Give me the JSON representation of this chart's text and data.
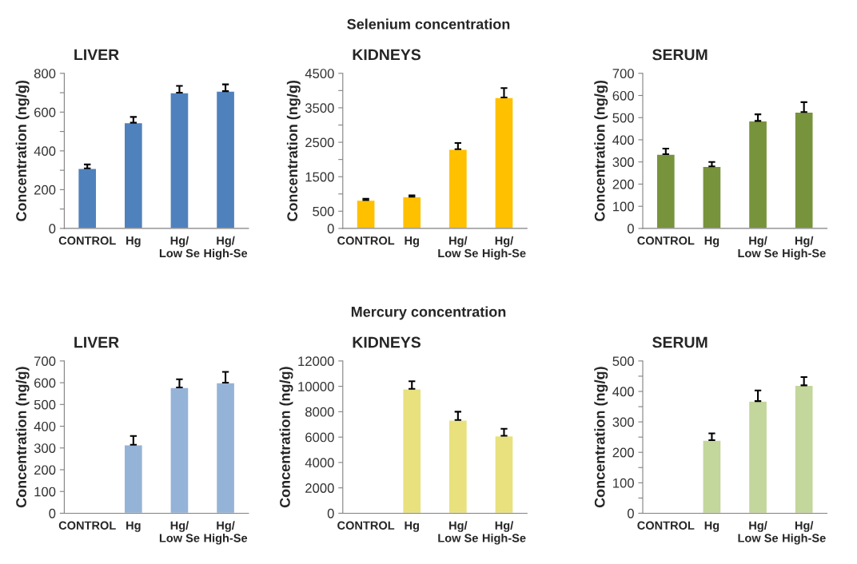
{
  "chart_data": [
    {
      "type": "bar",
      "title": "LIVER",
      "ylabel": "Concentration (ng/g)",
      "annotations": [
        "Selenium concentration"
      ],
      "categories": [
        "CONTROL",
        "Hg",
        "Hg/\nLow Se",
        "Hg/\nHigh-Se"
      ],
      "values": [
        310,
        545,
        700,
        708
      ],
      "errors": [
        [
          310,
          330
        ],
        [
          545,
          575
        ],
        [
          700,
          735
        ],
        [
          708,
          743
        ]
      ],
      "color": "#4f81bd",
      "ylim": [
        0,
        800
      ],
      "yticks": [
        0,
        {
          "value": 100,
          "label": null
        },
        200,
        {
          "value": 300,
          "label": null
        },
        400,
        {
          "value": 500,
          "label": null
        },
        600,
        {
          "value": 700,
          "label": null
        },
        800
      ],
      "grid": false,
      "legend": false
    },
    {
      "type": "bar",
      "title": "KIDNEYS",
      "ylabel": "Concentration (ng/g)",
      "categories": [
        "CONTROL",
        "Hg",
        "Hg/\nLow Se",
        "Hg/\nHigh-Se"
      ],
      "values": [
        820,
        920,
        2300,
        3800
      ],
      "errors": [
        [
          820,
          860
        ],
        [
          920,
          960
        ],
        [
          2300,
          2480
        ],
        [
          3800,
          4070
        ]
      ],
      "color": "#ffc000",
      "ylim": [
        0,
        4500
      ],
      "yticks": [
        0,
        500,
        {
          "value": 1000,
          "label": null
        },
        1500,
        {
          "value": 2000,
          "label": null
        },
        2500,
        {
          "value": 3000,
          "label": null
        },
        3500,
        {
          "value": 4000,
          "label": null
        },
        4500
      ],
      "grid": false,
      "legend": false
    },
    {
      "type": "bar",
      "title": "SERUM",
      "ylabel": "Concentration (ng/g)",
      "categories": [
        "CONTROL",
        "Hg",
        "Hg/\nLow Se",
        "Hg/\nHigh-Se"
      ],
      "values": [
        335,
        280,
        485,
        525
      ],
      "errors": [
        [
          335,
          360
        ],
        [
          280,
          300
        ],
        [
          485,
          515
        ],
        [
          525,
          570
        ]
      ],
      "color": "#77933c",
      "ylim": [
        0,
        700
      ],
      "yticks": [
        0,
        100,
        200,
        300,
        400,
        500,
        600,
        700
      ],
      "grid": false,
      "legend": false
    },
    {
      "type": "bar",
      "title": "LIVER",
      "ylabel": "Concentration (ng/g)",
      "annotations": [
        "Mercury concentration"
      ],
      "categories": [
        "CONTROL",
        "Hg",
        "Hg/\nLow Se",
        "Hg/\nHigh-Se"
      ],
      "values": [
        null,
        315,
        578,
        600
      ],
      "errors": [
        null,
        [
          315,
          355
        ],
        [
          578,
          616
        ],
        [
          600,
          650
        ]
      ],
      "color": "#95b3d7",
      "ylim": [
        0,
        700
      ],
      "yticks": [
        0,
        100,
        200,
        300,
        400,
        500,
        600,
        700
      ],
      "grid": false,
      "legend": false
    },
    {
      "type": "bar",
      "title": "KIDNEYS",
      "ylabel": "Concentration (ng/g)",
      "categories": [
        "CONTROL",
        "Hg",
        "Hg/\nLow Se",
        "Hg/\nHigh-Se"
      ],
      "values": [
        null,
        9800,
        7350,
        6100
      ],
      "errors": [
        null,
        [
          9800,
          10400
        ],
        [
          7350,
          8000
        ],
        [
          6100,
          6650
        ]
      ],
      "color": "#e8e17e",
      "ylim": [
        0,
        12000
      ],
      "yticks": [
        0,
        2000,
        4000,
        6000,
        8000,
        10000,
        12000
      ],
      "grid": false,
      "legend": false
    },
    {
      "type": "bar",
      "title": "SERUM",
      "ylabel": "Concentration (ng/g)",
      "categories": [
        "CONTROL",
        "Hg",
        "Hg/\nLow Se",
        "Hg/\nHigh-Se"
      ],
      "values": [
        null,
        240,
        368,
        420
      ],
      "errors": [
        null,
        [
          240,
          262
        ],
        [
          368,
          403
        ],
        [
          420,
          447
        ]
      ],
      "color": "#c3d69b",
      "ylim": [
        0,
        500
      ],
      "yticks": [
        0,
        {
          "value": 50,
          "label": null
        },
        100,
        {
          "value": 150,
          "label": null
        },
        200,
        {
          "value": 250,
          "label": null
        },
        300,
        {
          "value": 350,
          "label": null
        },
        400,
        {
          "value": 450,
          "label": null
        },
        500
      ],
      "grid": false,
      "legend": false
    }
  ]
}
